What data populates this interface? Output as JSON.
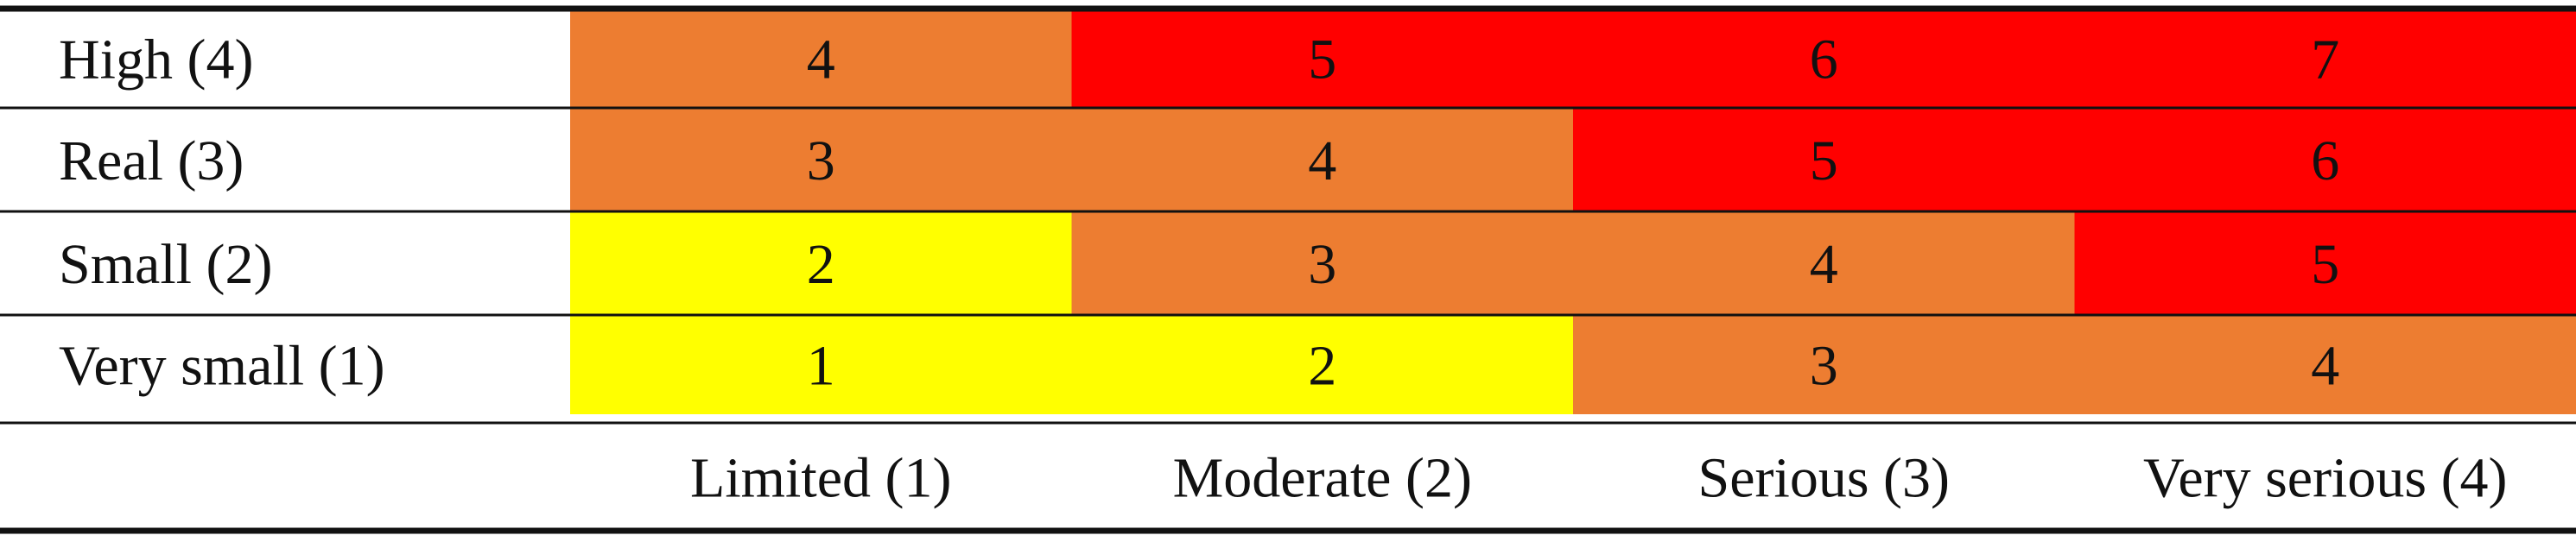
{
  "chart_data": {
    "type": "heatmap",
    "row_labels": [
      "High (4)",
      "Real (3)",
      "Small (2)",
      "Very small (1)"
    ],
    "column_labels": [
      "Limited (1)",
      "Moderate (2)",
      "Serious (3)",
      "Very serious (4)"
    ],
    "values": [
      [
        4,
        5,
        6,
        7
      ],
      [
        3,
        4,
        5,
        6
      ],
      [
        2,
        3,
        4,
        5
      ],
      [
        1,
        2,
        3,
        4
      ]
    ],
    "color_scale": {
      "1": "#FFFF00",
      "2": "#FFFF00",
      "3": "#ED7D31",
      "4": "#ED7D31",
      "5": "#FF0000",
      "6": "#FF0000",
      "7": "#FF0000"
    },
    "grid": true
  }
}
